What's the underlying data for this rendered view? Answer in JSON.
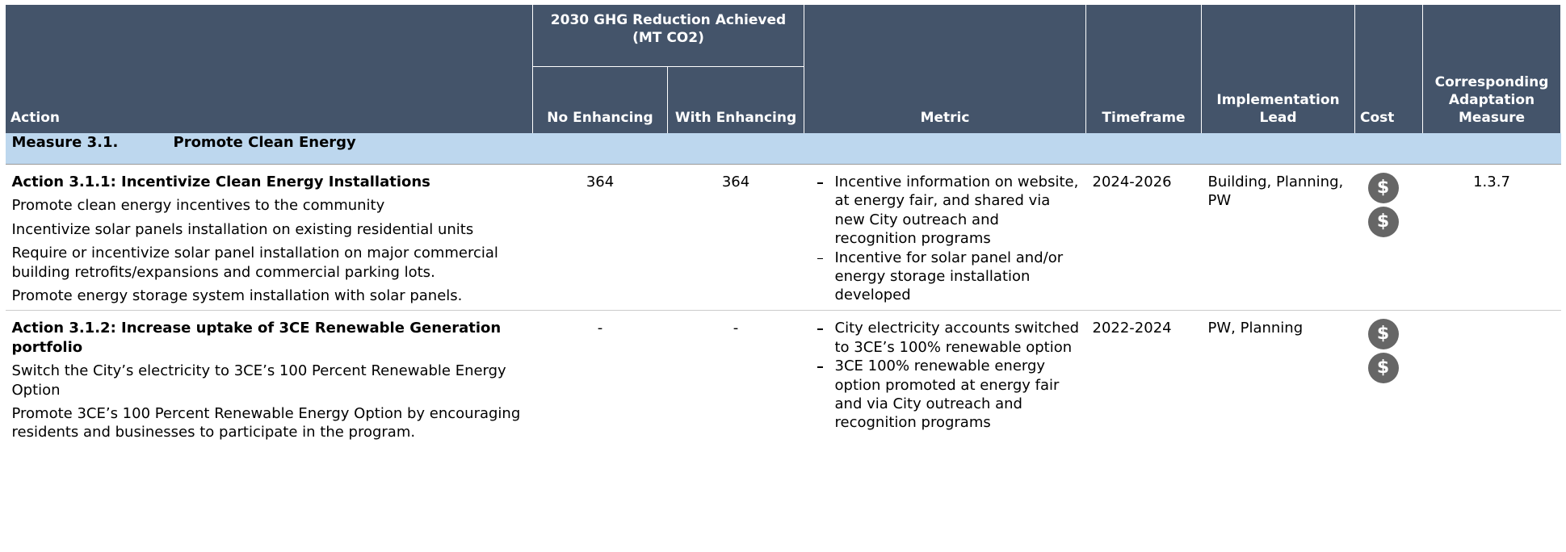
{
  "header": {
    "action": "Action",
    "ghg_group": "2030 GHG Reduction Achieved (MT CO2)",
    "no_enhancing": "No Enhancing",
    "with_enhancing": "With Enhancing",
    "metric": "Metric",
    "timeframe": "Timeframe",
    "lead": "Implementation Lead",
    "cost": "Cost",
    "adaptation": "Corresponding Adaptation Measure"
  },
  "measure": {
    "number": "Measure 3.1.",
    "title": "Promote Clean Energy"
  },
  "rows": [
    {
      "title": "Action 3.1.1: Incentivize Clean Energy Installations",
      "descriptions": [
        "Promote clean energy incentives to the community",
        "Incentivize solar panels installation on existing residential units",
        "Require or incentivize solar panel installation on major commercial building retrofits/expansions and commercial parking lots.",
        "Promote energy storage system installation with solar panels."
      ],
      "no_enhancing": 364,
      "with_enhancing": 364,
      "metrics": [
        "Incentive information on website, at energy fair, and shared via new City outreach and recognition programs",
        "Incentive for solar panel and/or energy storage installation developed"
      ],
      "timeframe": "2024-2026",
      "lead": "Building, Planning, PW",
      "cost": [
        "$",
        "$"
      ],
      "adaptation": "1.3.7"
    },
    {
      "title": "Action 3.1.2: Increase uptake of 3CE Renewable Generation portfolio",
      "descriptions": [
        "Switch the City’s electricity to 3CE’s 100 Percent Renewable Energy Option",
        "Promote 3CE’s 100 Percent Renewable Energy Option by encouraging residents and businesses to participate in the program."
      ],
      "no_enhancing": "-",
      "with_enhancing": "-",
      "metrics": [
        "City electricity accounts switched to 3CE’s 100% renewable option",
        "3CE 100% renewable energy option promoted at energy fair and via City outreach and recognition programs"
      ],
      "timeframe": "2022-2024",
      "lead": "PW, Planning",
      "cost": [
        "$",
        "$"
      ]
    }
  ]
}
